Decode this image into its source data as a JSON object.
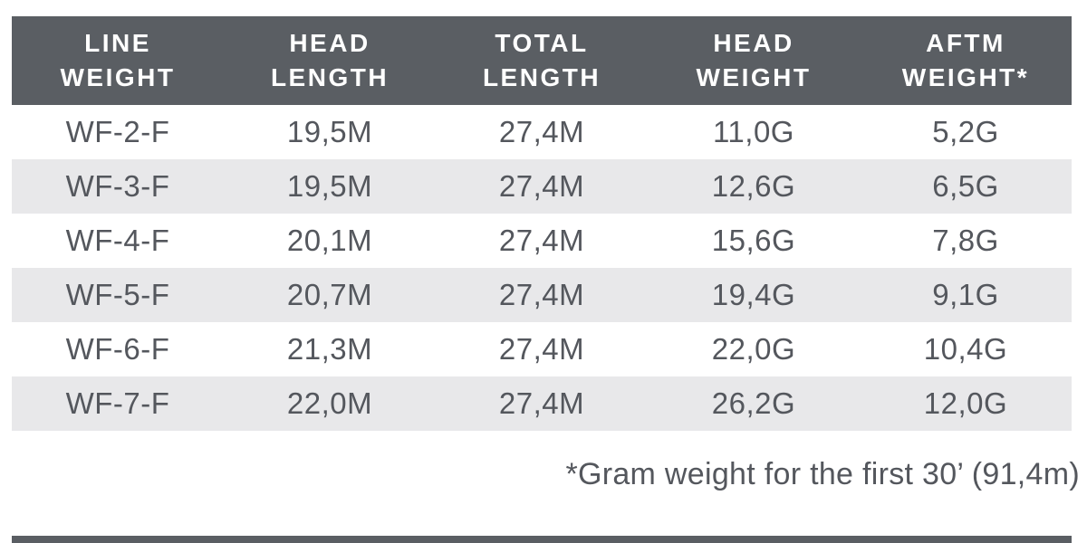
{
  "chart_data": {
    "type": "table",
    "columns": [
      [
        "LINE",
        "WEIGHT"
      ],
      [
        "HEAD",
        "LENGTH"
      ],
      [
        "TOTAL",
        "LENGTH"
      ],
      [
        "HEAD",
        "WEIGHT"
      ],
      [
        "AFTM",
        "WEIGHT*"
      ]
    ],
    "rows": [
      [
        "WF-2-F",
        "19,5M",
        "27,4M",
        "11,0G",
        "5,2G"
      ],
      [
        "WF-3-F",
        "19,5M",
        "27,4M",
        "12,6G",
        "6,5G"
      ],
      [
        "WF-4-F",
        "20,1M",
        "27,4M",
        "15,6G",
        "7,8G"
      ],
      [
        "WF-5-F",
        "20,7M",
        "27,4M",
        "19,4G",
        "9,1G"
      ],
      [
        "WF-6-F",
        "21,3M",
        "27,4M",
        "22,0G",
        "10,4G"
      ],
      [
        "WF-7-F",
        "22,0M",
        "27,4M",
        "26,2G",
        "12,0G"
      ]
    ],
    "footnote": "*Gram weight for the first 30’ (91,4m)",
    "layout_hints": {
      "striped_rows": "even rows shaded",
      "header_position": "top",
      "footnote_align": "right"
    }
  },
  "colors": {
    "header_bg": "#5a5e63",
    "header_text": "#ffffff",
    "row_alt_bg": "#e8e8ea",
    "body_text": "#54575d",
    "footnote_text": "#54575d",
    "bottom_bar": "#5a5e63",
    "page_bg": "#ffffff"
  }
}
